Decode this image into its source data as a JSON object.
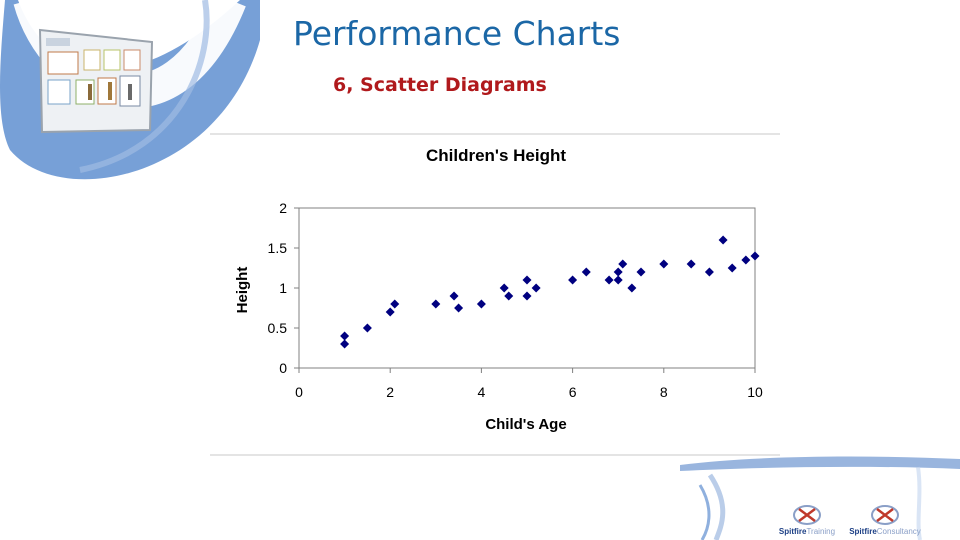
{
  "slide": {
    "title": "Performance Charts",
    "subtitle": "6, Scatter Diagrams",
    "title_color": "#1b67a6",
    "subtitle_color": "#b0191c",
    "accent_color": "#4f7fc2"
  },
  "logos": [
    {
      "name_bold": "Spitfire",
      "name_tail": "Training"
    },
    {
      "name_bold": "Spitfire",
      "name_tail": "Consultancy"
    }
  ],
  "chart_data": {
    "type": "scatter",
    "title": "Children's Height",
    "xlabel": "Child's Age",
    "ylabel": "Height",
    "xlim": [
      0,
      10
    ],
    "ylim": [
      0,
      2
    ],
    "xticks": [
      "0",
      "2",
      "4",
      "6",
      "8",
      "10"
    ],
    "yticks": [
      "0",
      "0.5",
      "1",
      "1.5",
      "2"
    ],
    "grid": false,
    "legend": "none",
    "marker_color": "#000080",
    "points": [
      {
        "x": 1.0,
        "y": 0.3
      },
      {
        "x": 1.0,
        "y": 0.4
      },
      {
        "x": 1.5,
        "y": 0.5
      },
      {
        "x": 2.0,
        "y": 0.7
      },
      {
        "x": 2.1,
        "y": 0.8
      },
      {
        "x": 3.0,
        "y": 0.8
      },
      {
        "x": 3.4,
        "y": 0.9
      },
      {
        "x": 3.5,
        "y": 0.75
      },
      {
        "x": 4.0,
        "y": 0.8
      },
      {
        "x": 4.5,
        "y": 1.0
      },
      {
        "x": 4.6,
        "y": 0.9
      },
      {
        "x": 5.0,
        "y": 1.1
      },
      {
        "x": 5.0,
        "y": 0.9
      },
      {
        "x": 5.2,
        "y": 1.0
      },
      {
        "x": 6.0,
        "y": 1.1
      },
      {
        "x": 6.3,
        "y": 1.2
      },
      {
        "x": 6.8,
        "y": 1.1
      },
      {
        "x": 7.0,
        "y": 1.2
      },
      {
        "x": 7.0,
        "y": 1.1
      },
      {
        "x": 7.1,
        "y": 1.3
      },
      {
        "x": 7.3,
        "y": 1.0
      },
      {
        "x": 7.5,
        "y": 1.2
      },
      {
        "x": 8.0,
        "y": 1.3
      },
      {
        "x": 8.6,
        "y": 1.3
      },
      {
        "x": 9.0,
        "y": 1.2
      },
      {
        "x": 9.3,
        "y": 1.6
      },
      {
        "x": 9.5,
        "y": 1.25
      },
      {
        "x": 9.8,
        "y": 1.35
      },
      {
        "x": 10.0,
        "y": 1.4
      }
    ]
  }
}
